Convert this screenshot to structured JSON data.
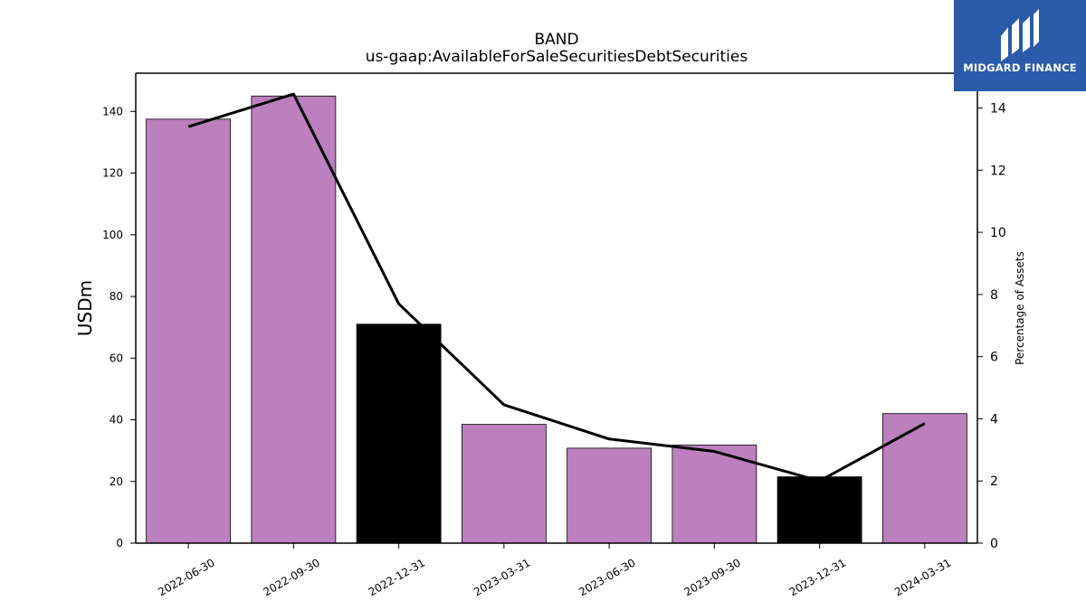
{
  "chart_data": {
    "type": "bar",
    "title": "BAND",
    "subtitle": "us-gaap:AvailableForSaleSecuritiesDebtSecurities",
    "ylabel": "USDm",
    "y2label": "Percentage of Assets",
    "categories": [
      "2022-06-30",
      "2022-09-30",
      "2022-12-31",
      "2023-03-31",
      "2023-06-30",
      "2023-09-30",
      "2023-12-31",
      "2024-03-31"
    ],
    "bar_values": [
      137.5,
      145.0,
      71.0,
      38.5,
      30.8,
      31.8,
      21.5,
      42.0
    ],
    "bar_colors": [
      "#bb80bd",
      "#bb80bd",
      "#000000",
      "#bb80bd",
      "#bb80bd",
      "#bb80bd",
      "#000000",
      "#bb80bd"
    ],
    "line_series": {
      "values": [
        13.4,
        14.45,
        7.7,
        4.45,
        3.35,
        2.95,
        2.0,
        3.85
      ],
      "color": "#000000"
    },
    "ylim": [
      0,
      152.4
    ],
    "y2lim": [
      0,
      15.12
    ],
    "yticks": [
      0,
      20,
      40,
      60,
      80,
      100,
      120,
      140
    ],
    "y2ticks": [
      0,
      2,
      4,
      6,
      8,
      10,
      12,
      14
    ],
    "grid": false
  },
  "logo": {
    "text": "MIDGARD FINANCE",
    "background": "#2a5aaa"
  }
}
